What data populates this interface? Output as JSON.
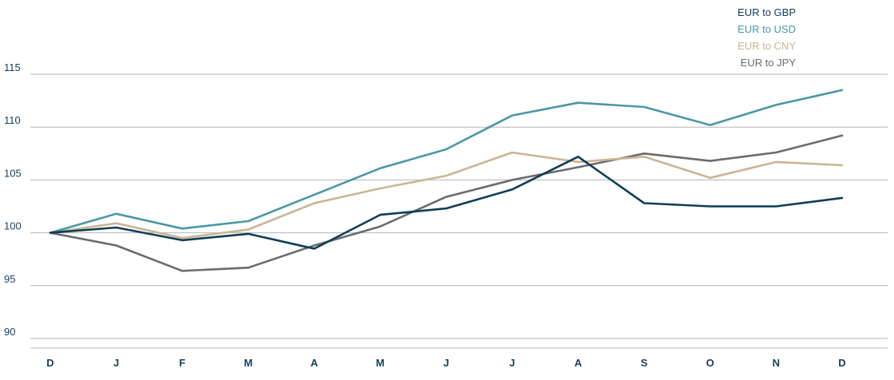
{
  "chart_data": {
    "type": "line",
    "title": "",
    "xlabel": "",
    "ylabel": "",
    "categories": [
      "D",
      "J",
      "F",
      "M",
      "A",
      "M",
      "J",
      "J",
      "A",
      "S",
      "O",
      "N",
      "D"
    ],
    "ylim": [
      90,
      115
    ],
    "yticks": [
      90,
      95,
      100,
      105,
      110,
      115
    ],
    "grid": true,
    "legend_position": "top-right",
    "series": [
      {
        "name": "EUR to GBP",
        "color": "#0f3d55",
        "values": [
          100.0,
          100.5,
          99.3,
          99.9,
          98.5,
          101.7,
          102.3,
          104.1,
          107.2,
          102.8,
          102.5,
          102.5,
          103.3
        ]
      },
      {
        "name": "EUR to USD",
        "color": "#4a97a5",
        "values": [
          100.0,
          101.8,
          100.4,
          101.1,
          103.6,
          106.1,
          107.9,
          111.1,
          112.3,
          111.9,
          110.2,
          112.1,
          113.5
        ]
      },
      {
        "name": "EUR to CNY",
        "color": "#c9b594",
        "values": [
          100.0,
          100.9,
          99.5,
          100.3,
          102.8,
          104.2,
          105.4,
          107.6,
          106.7,
          107.2,
          105.2,
          106.7,
          106.4
        ]
      },
      {
        "name": "EUR to JPY",
        "color": "#6b6b6b",
        "values": [
          100.0,
          98.8,
          96.4,
          96.7,
          98.8,
          100.6,
          103.4,
          105.0,
          106.2,
          107.5,
          106.8,
          107.6,
          109.2
        ]
      }
    ]
  }
}
